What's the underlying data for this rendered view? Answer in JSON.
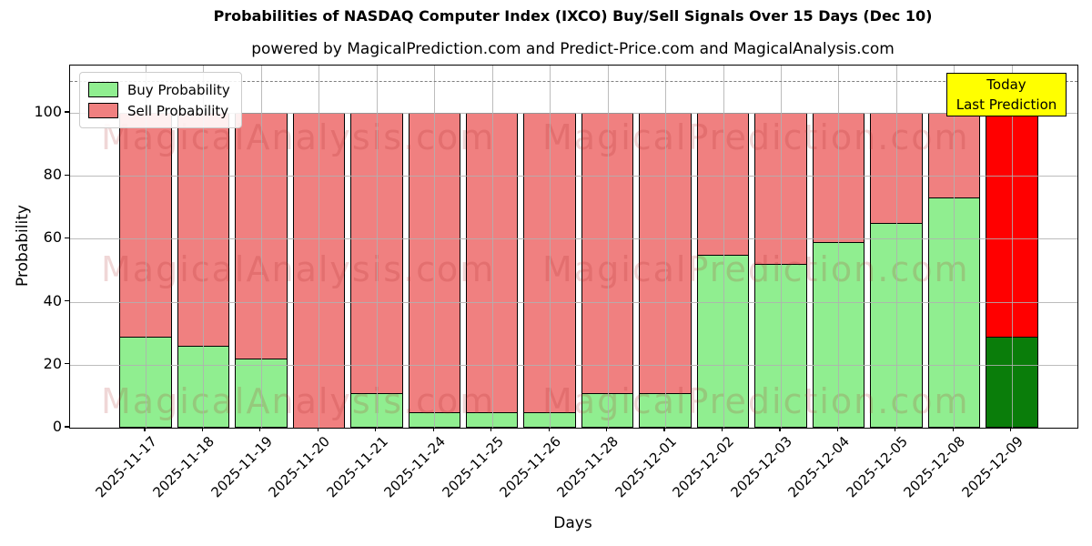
{
  "title": "Probabilities of NASDAQ Computer Index (IXCO) Buy/Sell Signals Over 15 Days (Dec 10)",
  "subtitle": "powered by MagicalPrediction.com and Predict-Price.com and MagicalAnalysis.com",
  "watermark": {
    "left_text": "MagicalAnalysis.com",
    "right_text": "MagicalPrediction.com",
    "color": "rgba(170,35,35,0.18)"
  },
  "legend": {
    "items": [
      {
        "label": "Buy Probability",
        "color": "#90ee90"
      },
      {
        "label": "Sell Probability",
        "color": "#f08080"
      }
    ]
  },
  "annotation": {
    "line1": "Today",
    "line2": "Last Prediction",
    "bg": "#ffff00"
  },
  "axes": {
    "ylabel": "Probability",
    "xlabel": "Days",
    "yticks": [
      0,
      20,
      40,
      60,
      80,
      100
    ],
    "ylim": [
      0,
      115
    ],
    "dashed_line_y": 110,
    "grid": true
  },
  "chart_data": {
    "type": "bar",
    "stacked": true,
    "title": "Probabilities of NASDAQ Computer Index (IXCO) Buy/Sell Signals Over 15 Days (Dec 10)",
    "xlabel": "Days",
    "ylabel": "Probability",
    "categories": [
      "2025-11-17",
      "2025-11-18",
      "2025-11-19",
      "2025-11-20",
      "2025-11-21",
      "2025-11-24",
      "2025-11-25",
      "2025-11-26",
      "2025-11-28",
      "2025-12-01",
      "2025-12-02",
      "2025-12-03",
      "2025-12-04",
      "2025-12-05",
      "2025-12-08",
      "2025-12-09"
    ],
    "series": [
      {
        "name": "Buy Probability",
        "values": [
          29,
          26,
          22,
          0,
          11,
          5,
          5,
          5,
          11,
          11,
          55,
          52,
          59,
          65,
          73,
          29
        ]
      },
      {
        "name": "Sell Probability",
        "values": [
          71,
          74,
          78,
          100,
          89,
          95,
          95,
          95,
          89,
          89,
          45,
          48,
          41,
          35,
          27,
          71
        ]
      }
    ],
    "colors": {
      "buy": "#90ee90",
      "sell": "#f08080",
      "today_buy": "#0a7d0a",
      "today_sell": "#ff0000",
      "bar_edge": "#000000"
    },
    "today_index": 15,
    "legend_position": "upper left",
    "ylim": [
      0,
      115
    ]
  }
}
